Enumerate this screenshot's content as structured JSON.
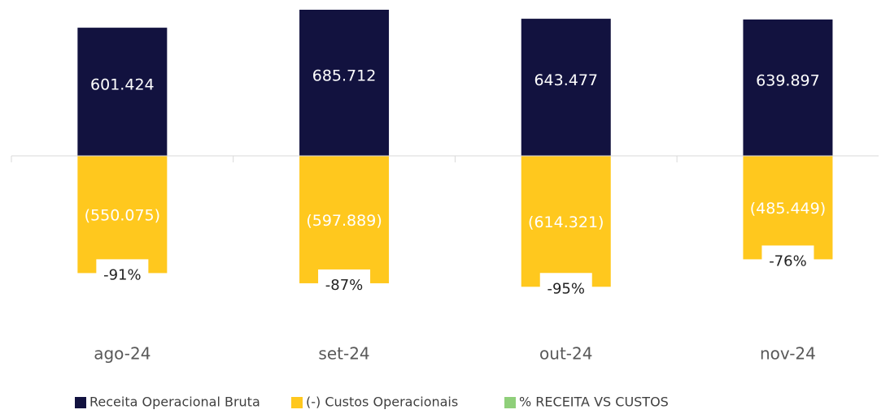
{
  "chart_data": {
    "type": "bar",
    "categories": [
      "ago-24",
      "set-24",
      "out-24",
      "nov-24"
    ],
    "series": [
      {
        "name": "Receita Operacional Bruta",
        "color": "#12123f",
        "values": [
          601424,
          685712,
          643477,
          639897
        ],
        "value_labels": [
          "601.424",
          "685.712",
          "643.477",
          "639.897"
        ]
      },
      {
        "name": "(-) Custos Operacionais",
        "color": "#ffc81e",
        "values": [
          -550075,
          -597889,
          -614321,
          -485449
        ],
        "value_labels": [
          "(550.075)",
          "(597.889)",
          "(614.321)",
          "(485.449)"
        ]
      },
      {
        "name": "% RECEITA VS CUSTOS",
        "color": "#8fcf7a",
        "values": [
          -91,
          -87,
          -95,
          -76
        ],
        "value_labels": [
          "-91%",
          "-87%",
          "-95%",
          "-76%"
        ]
      }
    ],
    "legend": "bottom"
  }
}
